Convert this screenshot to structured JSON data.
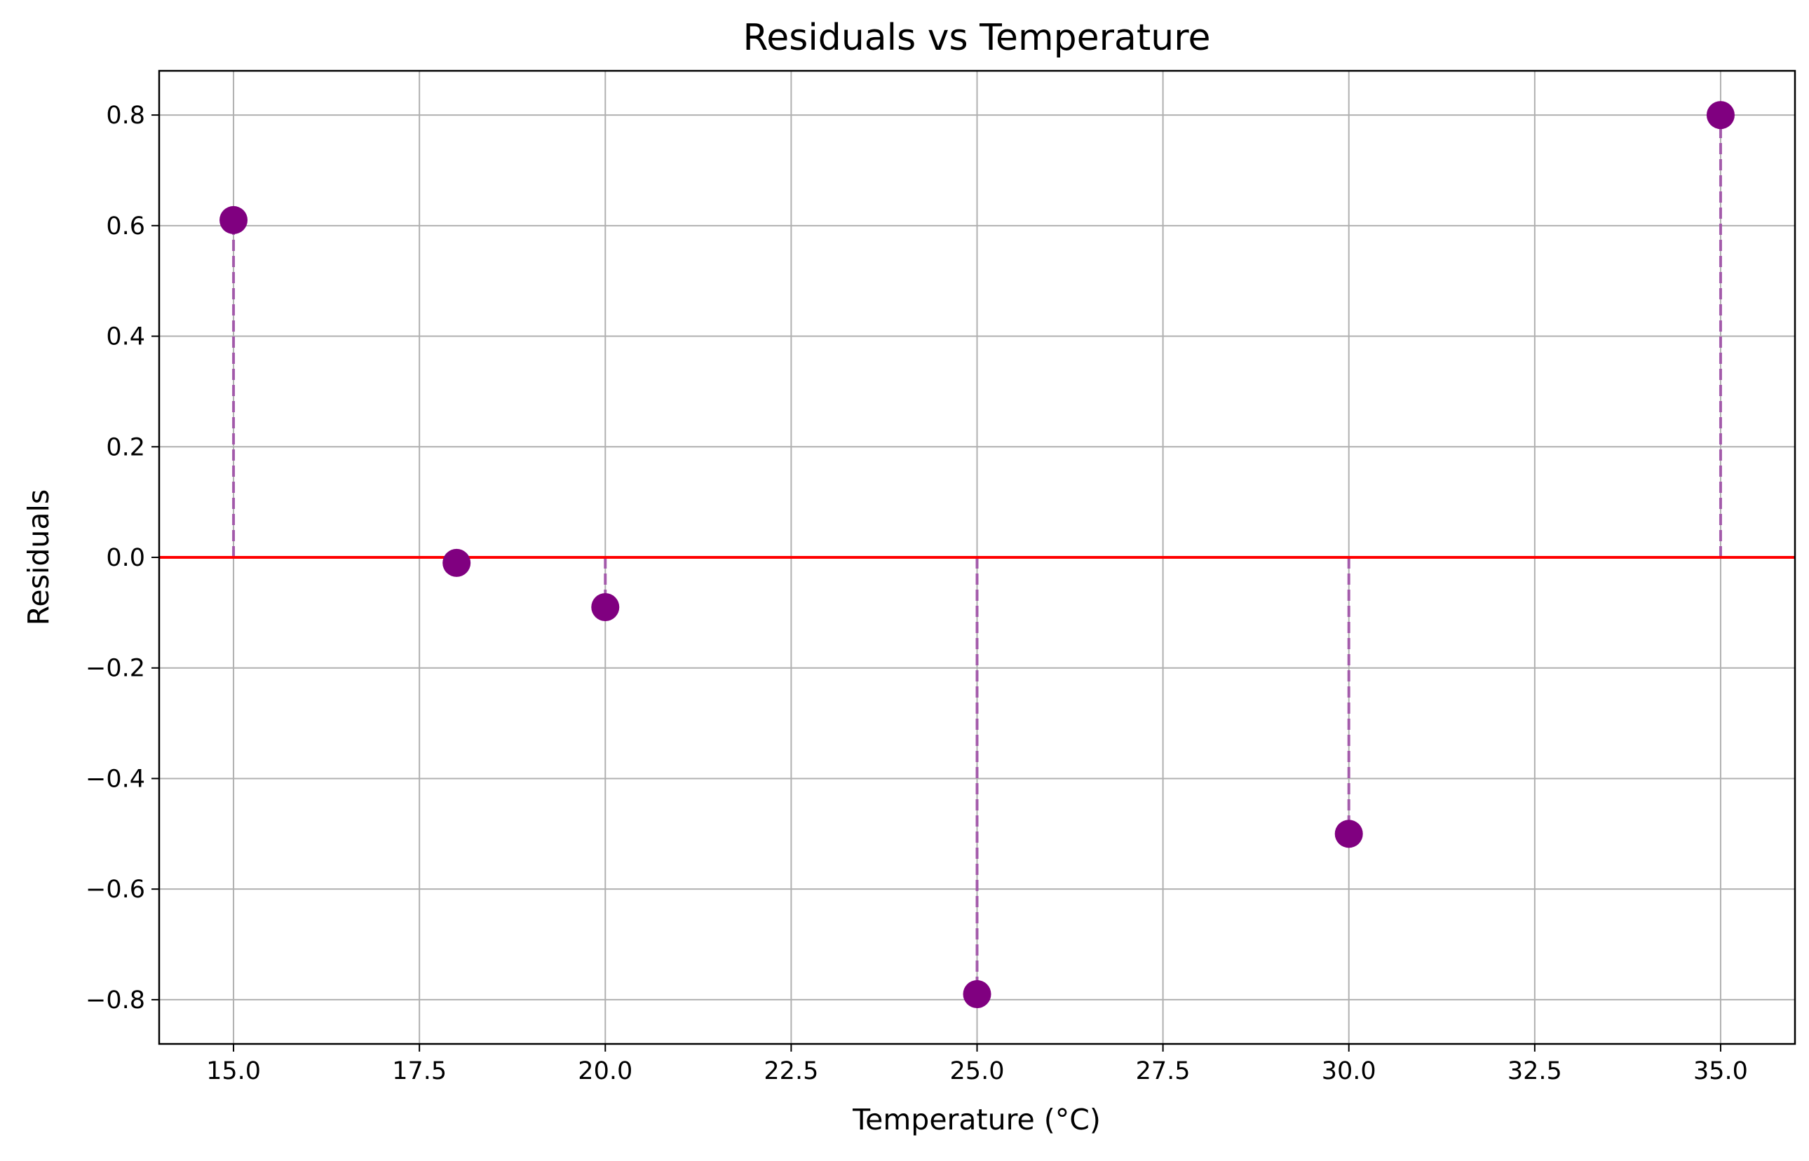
{
  "chart_data": {
    "type": "scatter",
    "title": "Residuals vs Temperature",
    "xlabel": "Temperature (°C)",
    "ylabel": "Residuals",
    "xlim": [
      14.0,
      36.0
    ],
    "ylim": [
      -0.88,
      0.88
    ],
    "xticks": [
      15.0,
      17.5,
      20.0,
      22.5,
      25.0,
      27.5,
      30.0,
      32.5,
      35.0
    ],
    "xtick_labels": [
      "15.0",
      "17.5",
      "20.0",
      "22.5",
      "25.0",
      "27.5",
      "30.0",
      "32.5",
      "35.0"
    ],
    "yticks": [
      -0.8,
      -0.6,
      -0.4,
      -0.2,
      0.0,
      0.2,
      0.4,
      0.6,
      0.8
    ],
    "ytick_labels": [
      "−0.8",
      "−0.6",
      "−0.4",
      "−0.2",
      "0.0",
      "0.2",
      "0.4",
      "0.6",
      "0.8"
    ],
    "grid": true,
    "points": [
      {
        "x": 15,
        "y": 0.61
      },
      {
        "x": 18,
        "y": -0.01
      },
      {
        "x": 20,
        "y": -0.09
      },
      {
        "x": 25,
        "y": -0.79
      },
      {
        "x": 30,
        "y": -0.5
      },
      {
        "x": 35,
        "y": 0.8
      }
    ],
    "reference_line": {
      "y": 0.0,
      "color": "#ff0000"
    },
    "stem_style": "dashed",
    "colors": {
      "points": "#800080",
      "stems": "#a050a8",
      "reference_line": "#ff0000",
      "grid": "#b0b0b0"
    }
  }
}
